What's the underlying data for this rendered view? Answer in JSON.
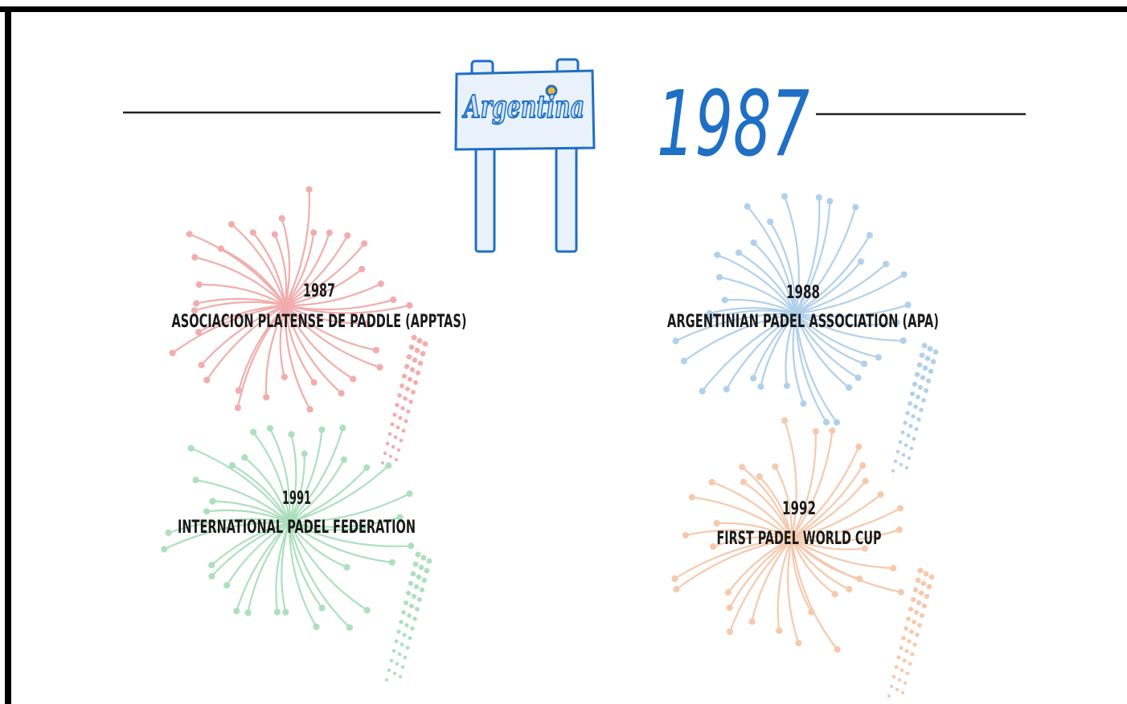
{
  "sign": {
    "text": "Argentina",
    "color": "#1f6fc4"
  },
  "year": "1987",
  "items": [
    {
      "year": "1987",
      "label": "ASOCIACION PLATENSE DE PADDLE (APPTAS)",
      "color": "#f0a5a5"
    },
    {
      "year": "1988",
      "label": "ARGENTINIAN PADEL ASSOCIATION (APA)",
      "color": "#a9cbe8"
    },
    {
      "year": "1991",
      "label": "INTERNATIONAL PADEL FEDERATION",
      "color": "#a5dcb8"
    },
    {
      "year": "1992",
      "label": "FIRST PADEL WORLD CUP",
      "color": "#f5c4a5"
    }
  ]
}
